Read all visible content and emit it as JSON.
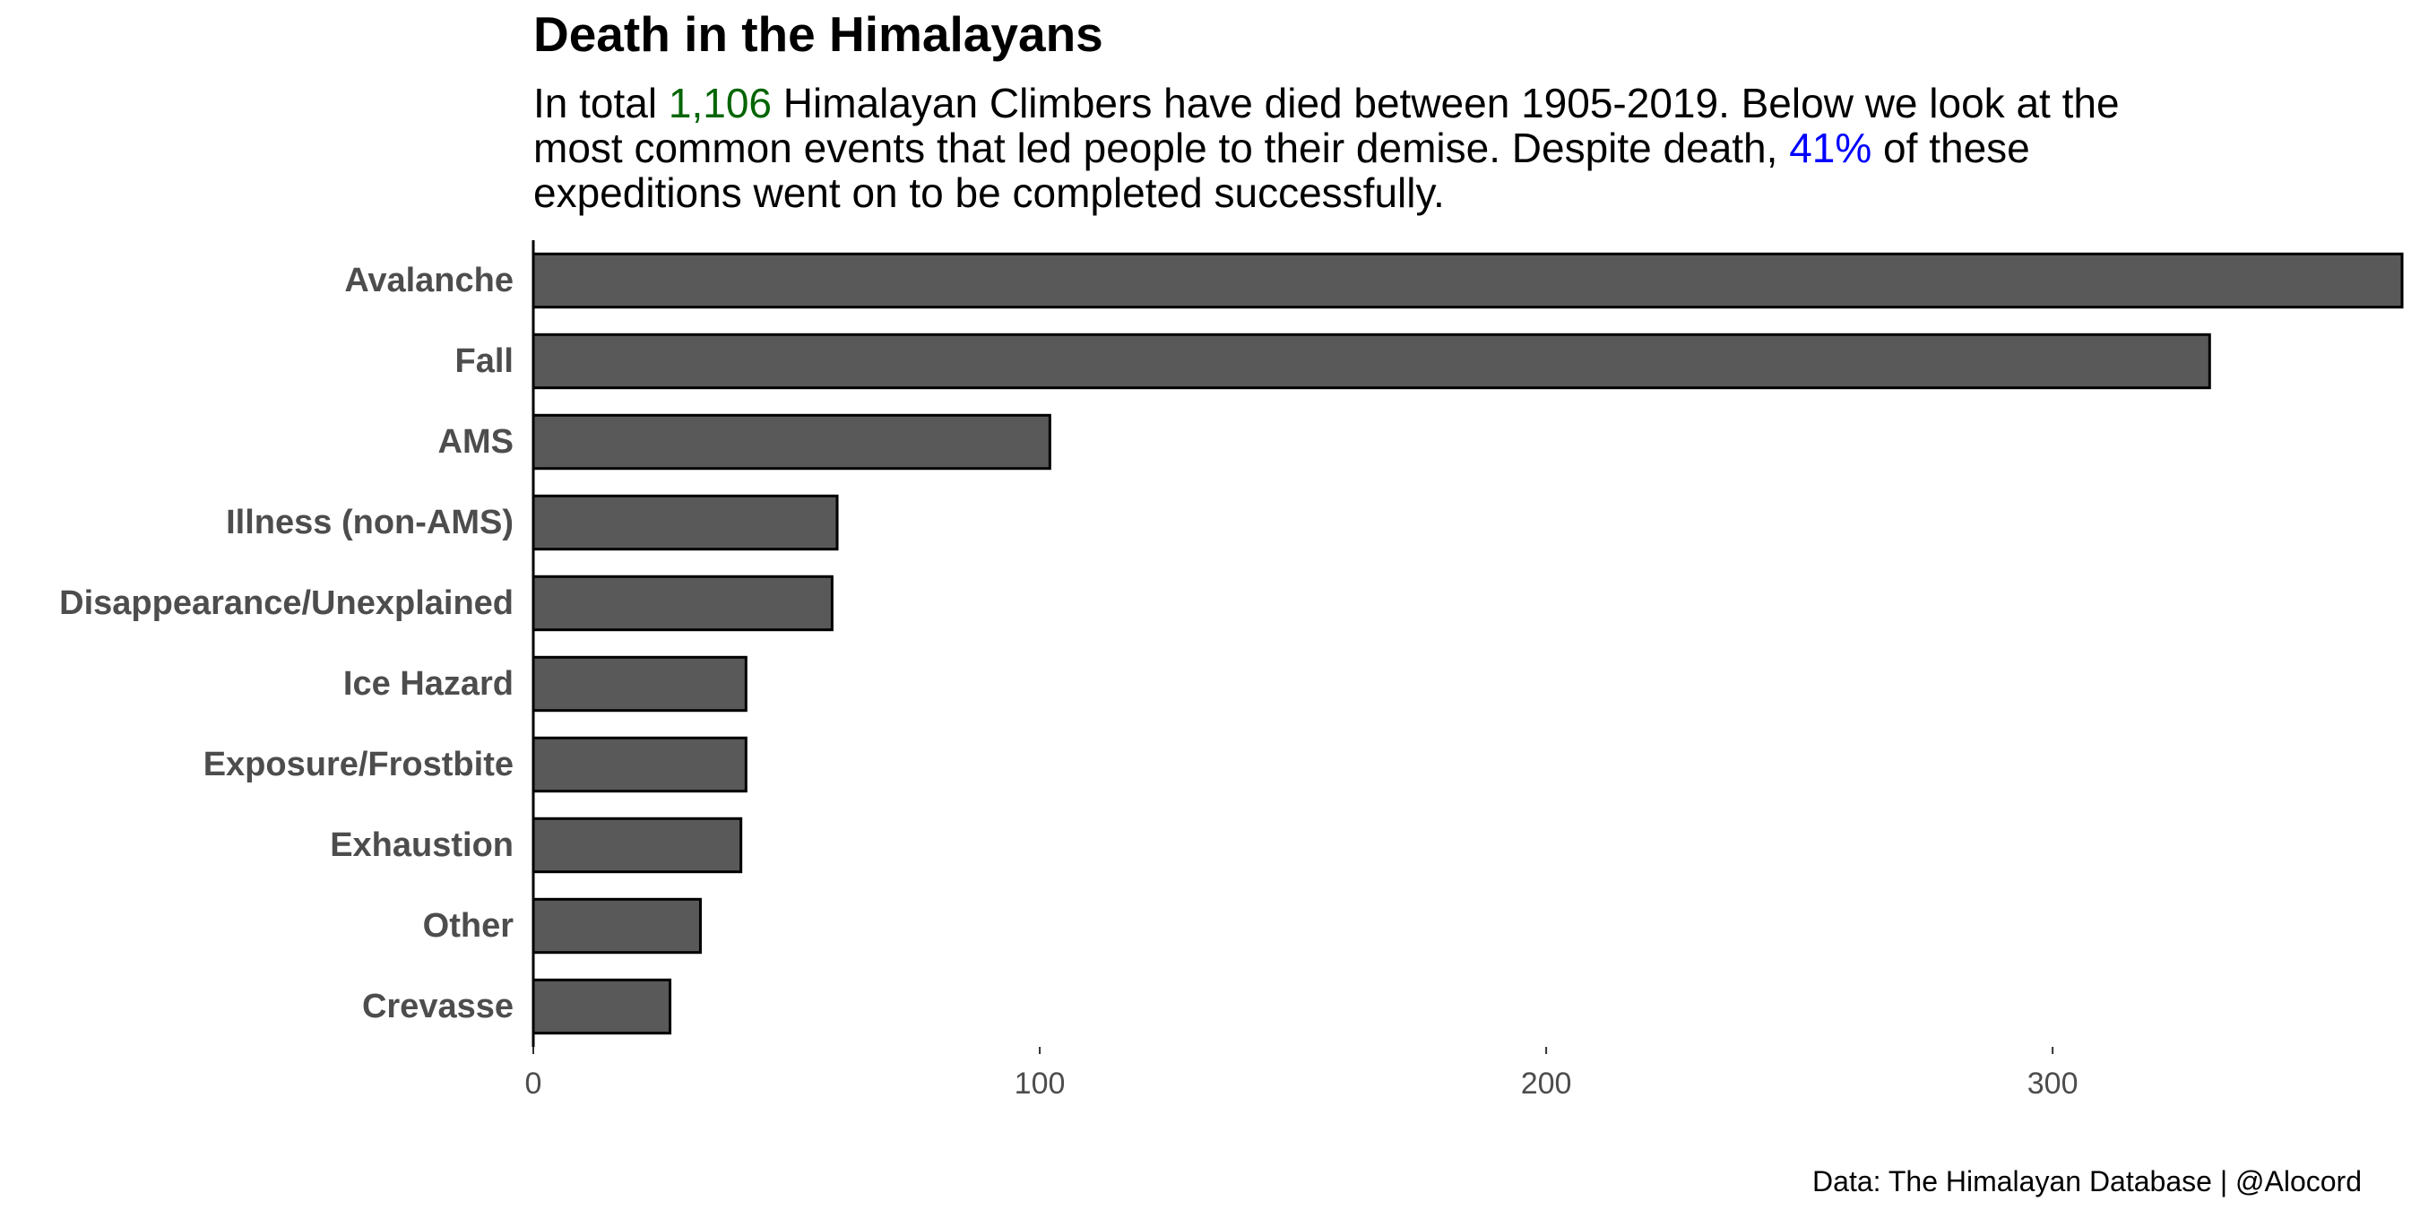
{
  "chart_data": {
    "type": "bar",
    "orientation": "horizontal",
    "title": "Death in the Himalayans",
    "subtitle": {
      "line1_a": "In total ",
      "total_deaths": "1,106",
      "line1_b": " Himalayan Climbers have died between 1905-2019. Below we look at the",
      "line2_a": "most common events that led people to their demise. Despite death, ",
      "success_pct": "41%",
      "line2_b": " of these",
      "line3": "expeditions went on to be completed successfully."
    },
    "categories": [
      "Avalanche",
      "Fall",
      "AMS",
      "Illness (non-AMS)",
      "Disappearance/Unexplained",
      "Ice Hazard",
      "Exposure/Frostbite",
      "Exhaustion",
      "Other",
      "Crevasse"
    ],
    "values": [
      369,
      331,
      102,
      60,
      59,
      42,
      42,
      41,
      33,
      27
    ],
    "xlabel": "",
    "ylabel": "",
    "xlim": [
      0,
      369
    ],
    "xticks": [
      0,
      100,
      200,
      300
    ],
    "grid": false,
    "legend": "none",
    "caption": "Data: The Himalayan Database | @Alocord"
  },
  "colors": {
    "bar_fill": "#595959",
    "bar_stroke": "#000000",
    "total_highlight": "#006400",
    "pct_highlight": "#0000ff",
    "axis_label": "#4d4d4d"
  }
}
